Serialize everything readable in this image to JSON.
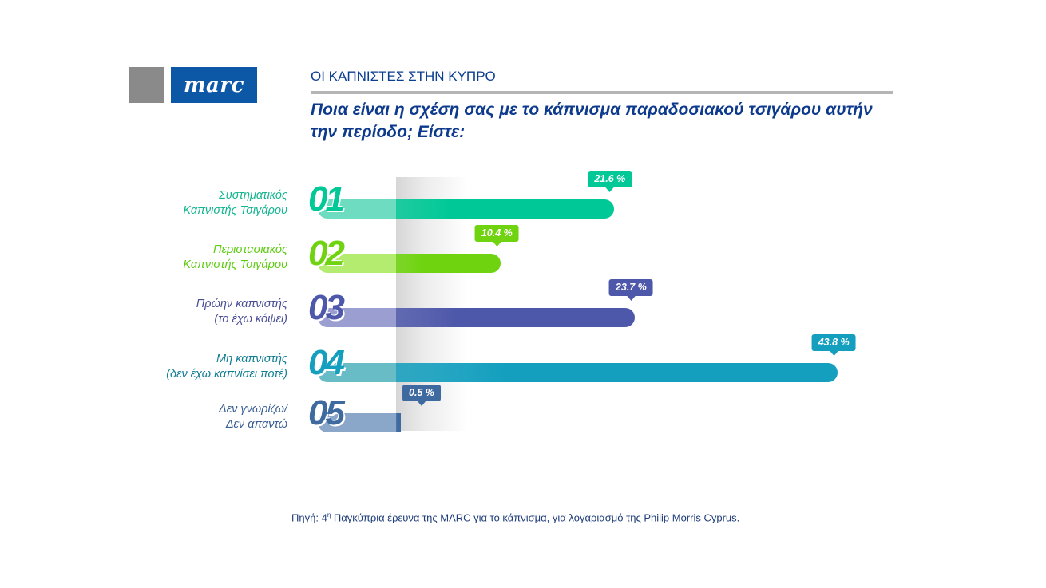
{
  "logo": {
    "text": "marc"
  },
  "header": {
    "section_title": "ΟΙ ΚΑΠΝΙΣΤΕΣ ΣΤΗΝ ΚΥΠΡΟ",
    "question": "Ποια είναι η σχέση σας με το κάπνισμα παραδοσιακού τσιγάρου αυτήν την περίοδο; Είστε:"
  },
  "colors": {
    "brand_blue": "#0d57a7",
    "title_blue": "#0d3a8c",
    "rule_gray": "#b5b5b5"
  },
  "rows": [
    {
      "num": "01",
      "label_line1": "Συστηματικός",
      "label_line2": "Καπνιστής Τσιγάρου",
      "value": 21.6,
      "value_label": "21.6 %",
      "color": "#00c896",
      "light": "#6edcc0",
      "text_color": "#12b58f"
    },
    {
      "num": "02",
      "label_line1": "Περιστασιακός",
      "label_line2": "Καπνιστής Τσιγάρου",
      "value": 10.4,
      "value_label": "10.4 %",
      "color": "#6fd40f",
      "light": "#b3ec6e",
      "text_color": "#5ccc10"
    },
    {
      "num": "03",
      "label_line1": "Πρώην καπνιστής",
      "label_line2": "(το έχω κόψει)",
      "value": 23.7,
      "value_label": "23.7 %",
      "color": "#4e58aa",
      "light": "#9a9ed0",
      "text_color": "#4a4f96"
    },
    {
      "num": "04",
      "label_line1": "Μη καπνιστής",
      "label_line2": "(δεν έχω καπνίσει ποτέ)",
      "value": 43.8,
      "value_label": "43.8 %",
      "color": "#149fbe",
      "light": "#67bcc6",
      "text_color": "#127f92"
    },
    {
      "num": "05",
      "label_line1": "Δεν γνωρίζω/",
      "label_line2": "Δεν απαντώ",
      "value": 0.5,
      "value_label": "0.5 %",
      "color": "#3e6aa0",
      "light": "#8aa6c8",
      "text_color": "#3a5f94"
    }
  ],
  "footer": {
    "source_prefix": "Πηγή: 4",
    "source_sup": "η",
    "source_rest": " Παγκύπρια έρευνα της MARC για το κάπνισμα, για λογαριασμό της Philip Morris Cyprus."
  },
  "chart_data": {
    "type": "bar",
    "orientation": "horizontal",
    "title": "Ποια είναι η σχέση σας με το κάπνισμα παραδοσιακού τσιγάρου αυτήν την περίοδο; Είστε:",
    "subtitle": "ΟΙ ΚΑΠΝΙΣΤΕΣ ΣΤΗΝ ΚΥΠΡΟ",
    "categories": [
      "Συστηματικός Καπνιστής Τσιγάρου",
      "Περιστασιακός Καπνιστής Τσιγάρου",
      "Πρώην καπνιστής (το έχω κόψει)",
      "Μη καπνιστής (δεν έχω καπνίσει ποτέ)",
      "Δεν γνωρίζω/ Δεν απαντώ"
    ],
    "values": [
      21.6,
      10.4,
      23.7,
      43.8,
      0.5
    ],
    "unit": "%",
    "xlabel": "",
    "ylabel": "",
    "grid": false,
    "legend": "none",
    "annotations": [
      "Πηγή: 4η Παγκύπρια έρευνα της MARC για το κάπνισμα, για λογαριασμό της Philip Morris Cyprus."
    ]
  }
}
